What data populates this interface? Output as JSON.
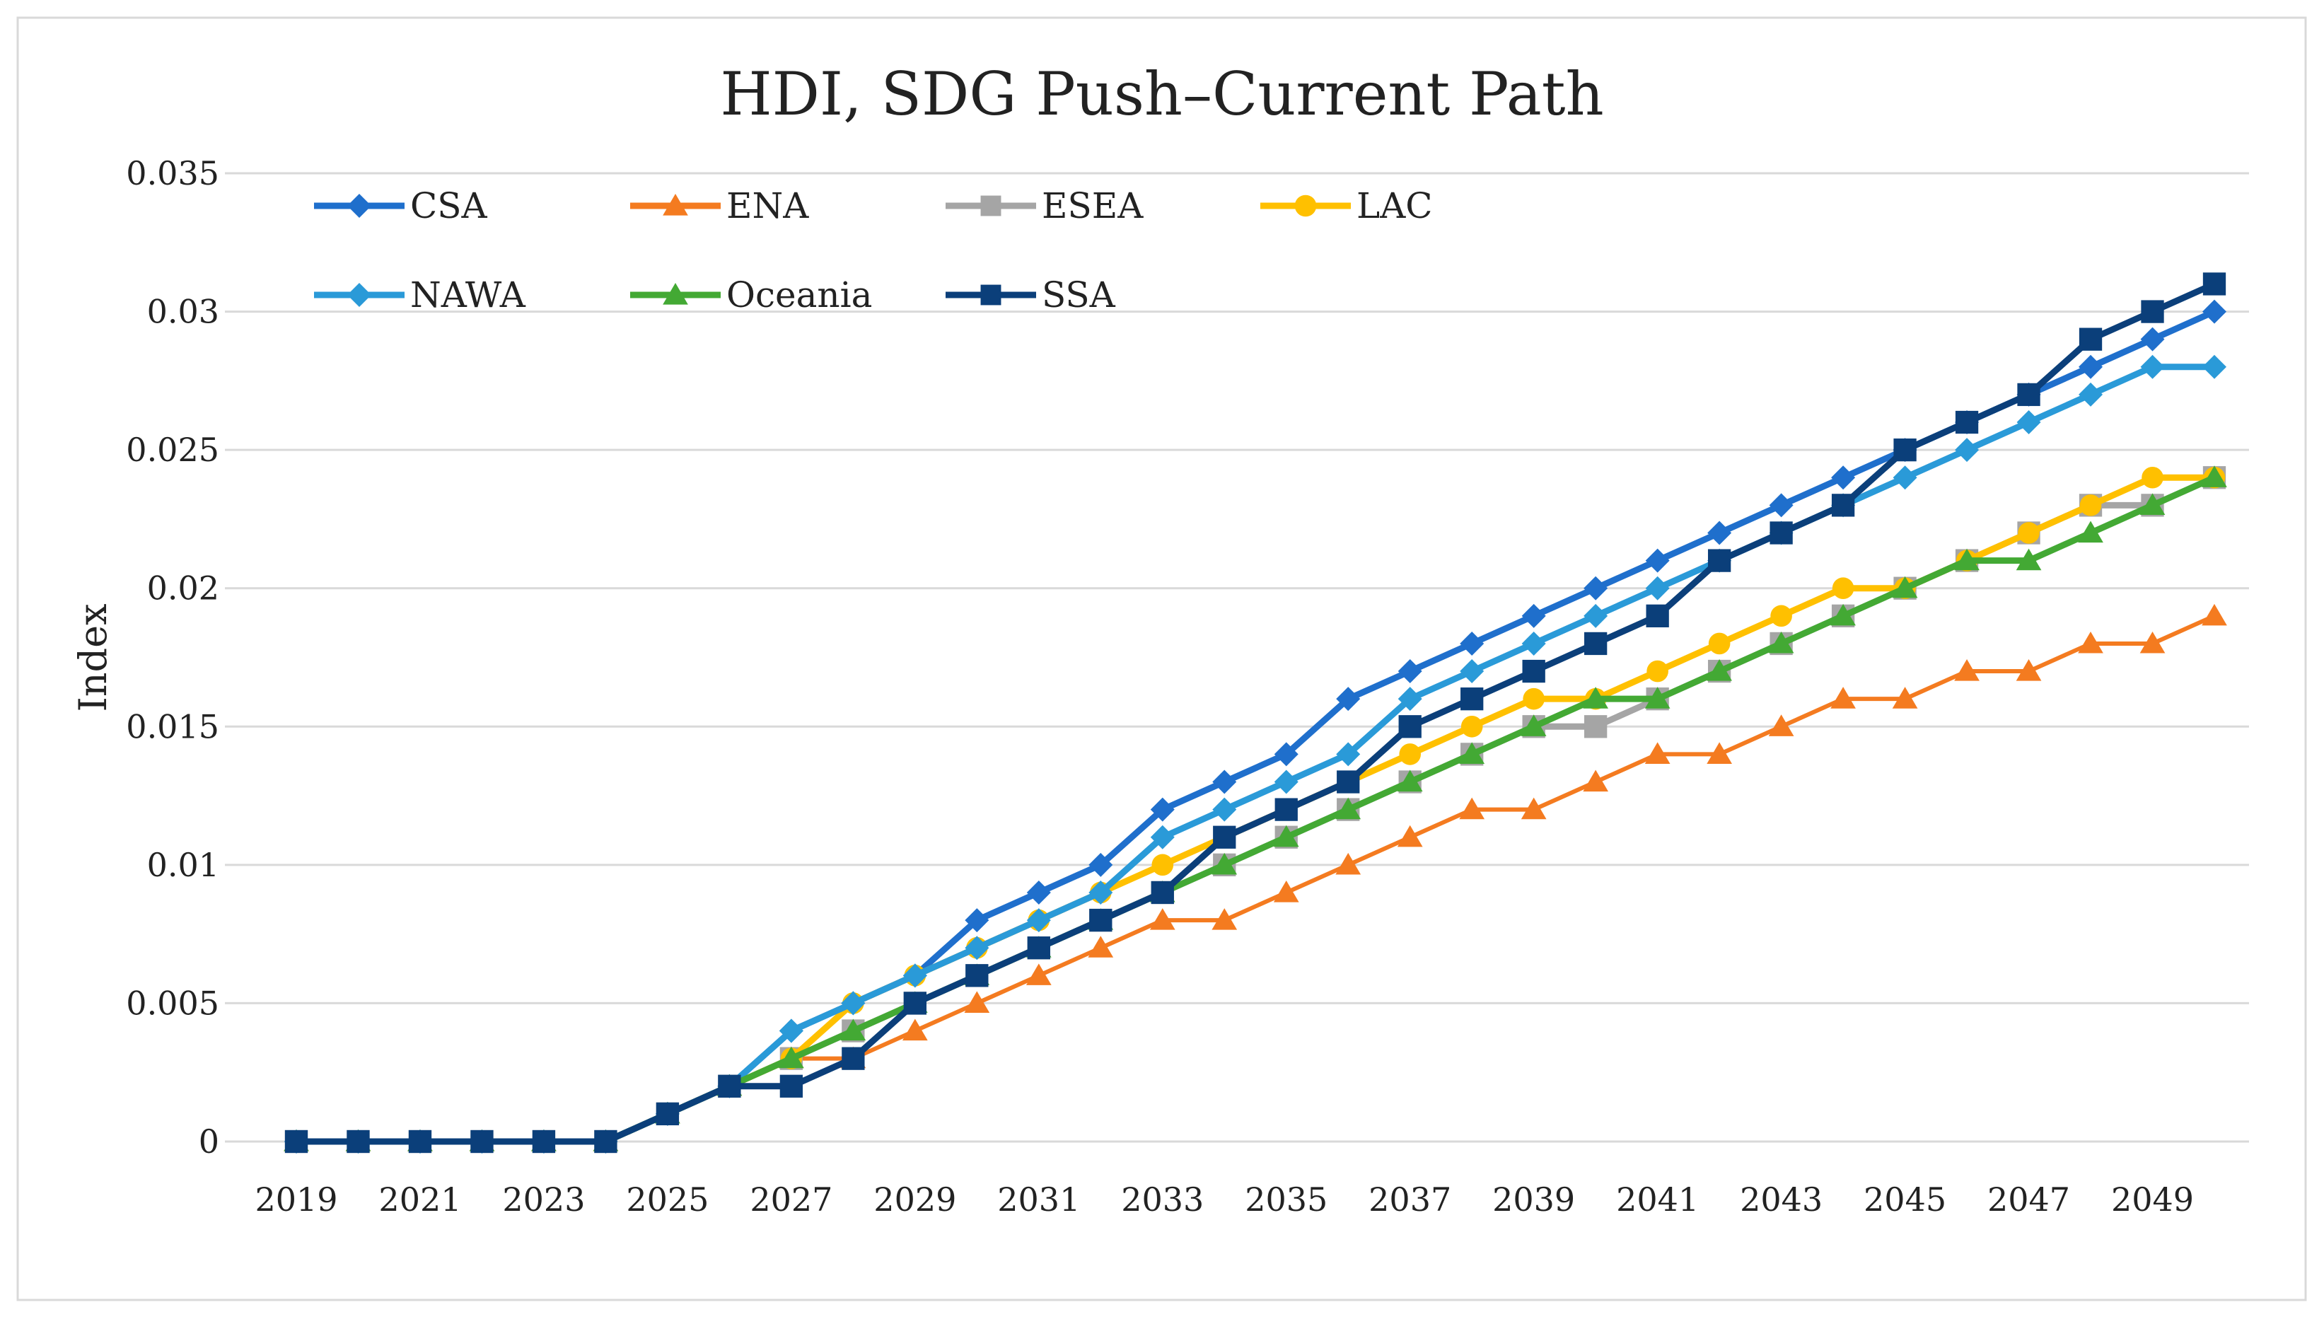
{
  "chart_data": {
    "type": "line",
    "title": "HDI, SDG Push–Current Path",
    "xlabel": "",
    "ylabel": "Index",
    "ylim": [
      0,
      0.035
    ],
    "yticks": [
      0,
      0.005,
      0.01,
      0.015,
      0.02,
      0.025,
      0.03,
      0.035
    ],
    "ytick_labels": [
      "0",
      "0.005",
      "0.01",
      "0.015",
      "0.02",
      "0.025",
      "0.03",
      "0.035"
    ],
    "x": [
      2019,
      2020,
      2021,
      2022,
      2023,
      2024,
      2025,
      2026,
      2027,
      2028,
      2029,
      2030,
      2031,
      2032,
      2033,
      2034,
      2035,
      2036,
      2037,
      2038,
      2039,
      2040,
      2041,
      2042,
      2043,
      2044,
      2045,
      2046,
      2047,
      2048,
      2049,
      2050
    ],
    "xtick_labels": [
      "2019",
      "2021",
      "2023",
      "2025",
      "2027",
      "2029",
      "2031",
      "2033",
      "2035",
      "2037",
      "2039",
      "2041",
      "2043",
      "2045",
      "2047",
      "2049"
    ],
    "grid": "horizontal",
    "legend_placement": "top-left",
    "series": [
      {
        "name": "CSA",
        "color": "#1f6fcc",
        "marker": "diamond",
        "values": [
          0,
          0,
          0,
          0,
          0,
          0,
          0.001,
          0.002,
          0.004,
          0.005,
          0.006,
          0.008,
          0.009,
          0.01,
          0.012,
          0.013,
          0.014,
          0.016,
          0.017,
          0.018,
          0.019,
          0.02,
          0.021,
          0.022,
          0.023,
          0.024,
          0.025,
          0.026,
          0.027,
          0.028,
          0.029,
          0.03
        ]
      },
      {
        "name": "ENA",
        "color": "#f47b20",
        "marker": "triangle",
        "values": [
          0,
          0,
          0,
          0,
          0,
          0,
          0.001,
          0.002,
          0.003,
          0.003,
          0.004,
          0.005,
          0.006,
          0.007,
          0.008,
          0.008,
          0.009,
          0.01,
          0.011,
          0.012,
          0.012,
          0.013,
          0.014,
          0.014,
          0.015,
          0.016,
          0.016,
          0.017,
          0.017,
          0.018,
          0.018,
          0.019
        ]
      },
      {
        "name": "ESEA",
        "color": "#a5a5a5",
        "marker": "square",
        "values": [
          0,
          0,
          0,
          0,
          0,
          0,
          0.001,
          0.002,
          0.003,
          0.004,
          0.005,
          0.006,
          0.007,
          0.008,
          0.009,
          0.01,
          0.011,
          0.012,
          0.013,
          0.014,
          0.015,
          0.015,
          0.016,
          0.017,
          0.018,
          0.019,
          0.02,
          0.021,
          0.022,
          0.023,
          0.023,
          0.024
        ]
      },
      {
        "name": "LAC",
        "color": "#ffc000",
        "marker": "circle",
        "values": [
          0,
          0,
          0,
          0,
          0,
          0,
          0.001,
          0.002,
          0.003,
          0.005,
          0.006,
          0.007,
          0.008,
          0.009,
          0.01,
          0.011,
          0.012,
          0.013,
          0.014,
          0.015,
          0.016,
          0.016,
          0.017,
          0.018,
          0.019,
          0.02,
          0.02,
          0.021,
          0.022,
          0.023,
          0.024,
          0.024
        ]
      },
      {
        "name": "NAWA",
        "color": "#2a9ad8",
        "marker": "diamond",
        "values": [
          0,
          0,
          0,
          0,
          0,
          0,
          0.001,
          0.002,
          0.004,
          0.005,
          0.006,
          0.007,
          0.008,
          0.009,
          0.011,
          0.012,
          0.013,
          0.014,
          0.016,
          0.017,
          0.018,
          0.019,
          0.02,
          0.021,
          0.022,
          0.023,
          0.024,
          0.025,
          0.026,
          0.027,
          0.028,
          0.028
        ]
      },
      {
        "name": "Oceania",
        "color": "#43a934",
        "marker": "triangle",
        "values": [
          0,
          0,
          0,
          0,
          0,
          0,
          0.001,
          0.002,
          0.003,
          0.004,
          0.005,
          0.006,
          0.007,
          0.008,
          0.009,
          0.01,
          0.011,
          0.012,
          0.013,
          0.014,
          0.015,
          0.016,
          0.016,
          0.017,
          0.018,
          0.019,
          0.02,
          0.021,
          0.021,
          0.022,
          0.023,
          0.024
        ]
      },
      {
        "name": "SSA",
        "color": "#0b3f7a",
        "marker": "square",
        "values": [
          0,
          0,
          0,
          0,
          0,
          0,
          0.001,
          0.002,
          0.002,
          0.003,
          0.005,
          0.006,
          0.007,
          0.008,
          0.009,
          0.011,
          0.012,
          0.013,
          0.015,
          0.016,
          0.017,
          0.018,
          0.019,
          0.021,
          0.022,
          0.023,
          0.025,
          0.026,
          0.027,
          0.029,
          0.03,
          0.031
        ]
      }
    ]
  }
}
